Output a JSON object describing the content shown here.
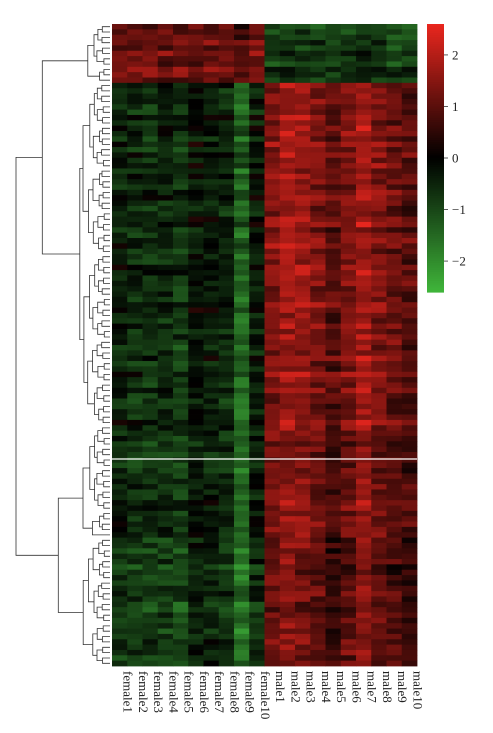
{
  "chart_data": {
    "type": "heatmap",
    "title": "",
    "xlabel": "",
    "ylabel": "",
    "columns": [
      "female1",
      "female2",
      "female3",
      "female4",
      "female5",
      "female6",
      "female7",
      "female8",
      "female9",
      "female10",
      "male1",
      "male2",
      "male3",
      "male4",
      "male5",
      "male6",
      "male7",
      "male8",
      "male9",
      "male10"
    ],
    "row_count": 120,
    "color_scale": {
      "min": -2.6,
      "max": 2.6,
      "ticks": [
        2,
        1,
        0,
        -1,
        -2
      ],
      "tick_labels": [
        "2",
        "1",
        "0",
        "−1",
        "−2"
      ],
      "low_color": "#3fb43a",
      "mid_color": "#000000",
      "high_color": "#e8261e"
    },
    "row_clusters": [
      {
        "name": "cluster_top",
        "rows": 11,
        "female_level": 1.2,
        "male_level": -0.8
      },
      {
        "name": "cluster_upper",
        "rows": 64,
        "female_level": -0.5,
        "male_level": 1.3
      },
      {
        "name": "cluster_lower_a",
        "rows": 21,
        "female_level": -0.6,
        "male_level": 1.1
      },
      {
        "name": "cluster_lower_b",
        "rows": 24,
        "female_level": -0.8,
        "male_level": 0.9
      }
    ],
    "column_effects": [
      0.1,
      0.0,
      -0.1,
      0.0,
      -0.2,
      0.3,
      0.2,
      0.0,
      -0.9,
      0.2,
      0.2,
      0.5,
      0.4,
      0.1,
      -0.3,
      0.1,
      0.6,
      0.1,
      -0.1,
      -0.3
    ],
    "grid": false,
    "legend": "top-right colorbar",
    "dendrogram": "rows"
  }
}
